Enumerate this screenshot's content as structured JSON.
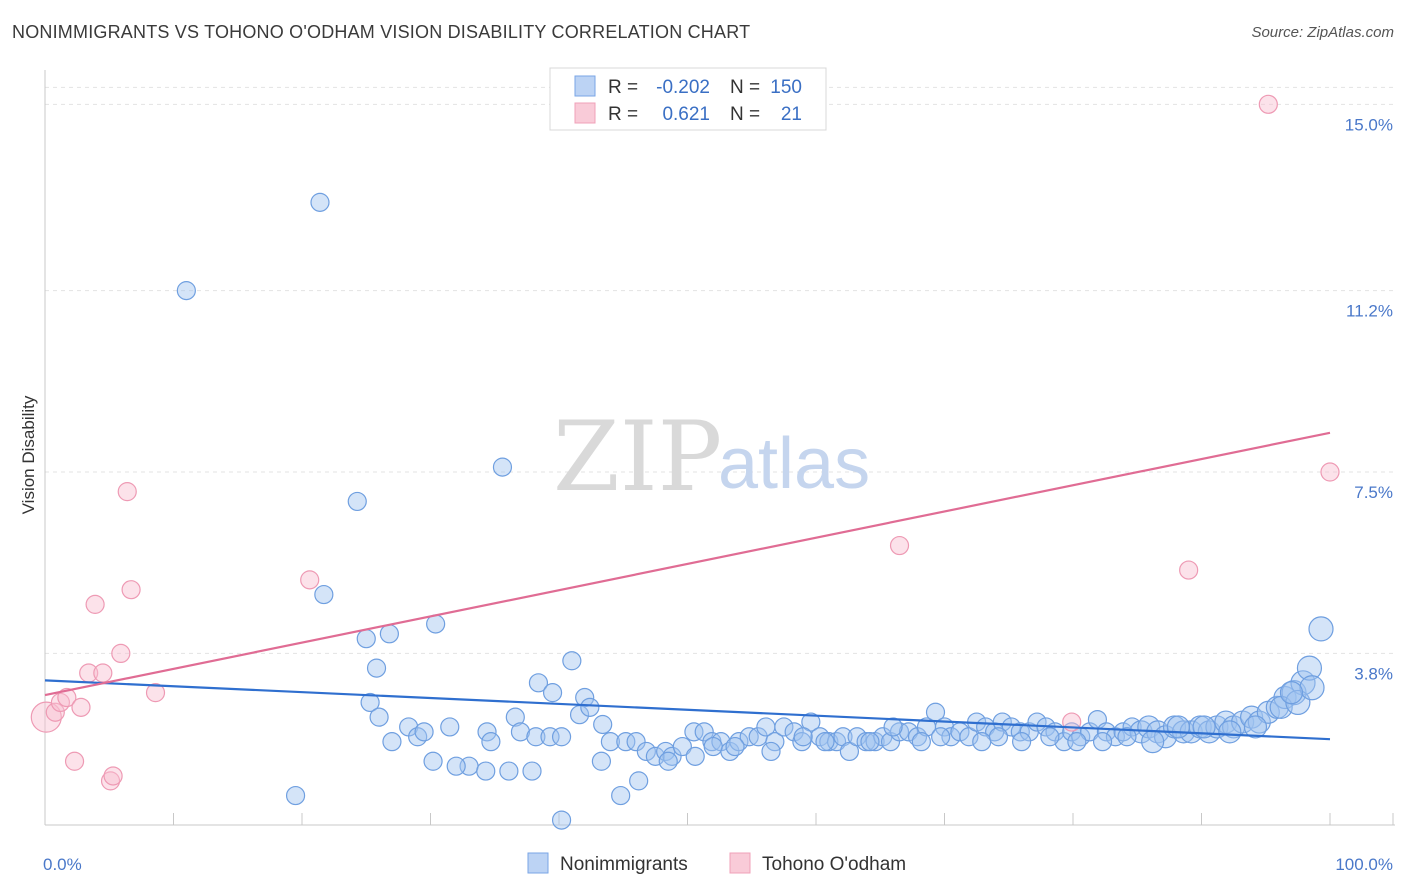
{
  "title": "NONIMMIGRANTS VS TOHONO O'ODHAM VISION DISABILITY CORRELATION CHART",
  "source": "Source: ZipAtlas.com",
  "watermark": {
    "zip": "ZIP",
    "atlas": "atlas"
  },
  "chart_data": {
    "type": "scatter",
    "xlabel": "",
    "ylabel": "Vision Disability",
    "xlim": [
      0,
      100
    ],
    "ylim": [
      0.3,
      15.7
    ],
    "x_tick_labels": [
      {
        "value": 0,
        "label": "0.0%"
      },
      {
        "value": 100,
        "label": "100.0%"
      }
    ],
    "y_tick_labels": [
      {
        "value": 3.8,
        "label": "3.8%"
      },
      {
        "value": 7.5,
        "label": "7.5%"
      },
      {
        "value": 11.2,
        "label": "11.2%"
      },
      {
        "value": 15.0,
        "label": "15.0%"
      }
    ],
    "grid": true,
    "legend_position": "top-center",
    "legend": [
      {
        "series": "Nonimmigrants",
        "r_label": "R =",
        "r_value": "-0.202",
        "n_label": "N =",
        "n_value": "150",
        "color": "#7aa6e6"
      },
      {
        "series": "Tohono O'odham",
        "r_label": "R =",
        "r_value": "0.621",
        "n_label": "N =",
        "n_value": "21",
        "color": "#f0a0b8"
      }
    ],
    "series": [
      {
        "name": "Nonimmigrants",
        "color": "#7aa6e6",
        "trend": {
          "x": [
            0,
            100
          ],
          "y": [
            3.25,
            2.05
          ],
          "color": "#2f6fcf"
        },
        "points": [
          [
            11,
            11.2
          ],
          [
            21.4,
            13.0
          ],
          [
            24.3,
            6.9
          ],
          [
            35.6,
            7.6
          ],
          [
            21.7,
            5.0
          ],
          [
            30.4,
            4.4
          ],
          [
            25,
            4.1
          ],
          [
            26.8,
            4.2
          ],
          [
            25.8,
            3.5
          ],
          [
            41,
            3.65
          ],
          [
            25.3,
            2.8
          ],
          [
            38.4,
            3.2
          ],
          [
            39.5,
            3.0
          ],
          [
            42,
            2.9
          ],
          [
            28.3,
            2.3
          ],
          [
            26,
            2.5
          ],
          [
            31.5,
            2.3
          ],
          [
            36.6,
            2.5
          ],
          [
            27,
            2.0
          ],
          [
            29,
            2.1
          ],
          [
            29.5,
            2.2
          ],
          [
            34.4,
            2.2
          ],
          [
            34.7,
            2.0
          ],
          [
            37,
            2.2
          ],
          [
            38.2,
            2.1
          ],
          [
            39.3,
            2.1
          ],
          [
            40.2,
            2.1
          ],
          [
            41.6,
            2.55
          ],
          [
            42.4,
            2.7
          ],
          [
            43.4,
            2.35
          ],
          [
            44,
            2.0
          ],
          [
            45.2,
            2.0
          ],
          [
            46,
            2.0
          ],
          [
            46.8,
            1.8
          ],
          [
            47.5,
            1.7
          ],
          [
            48.3,
            1.8
          ],
          [
            48.8,
            1.7
          ],
          [
            49.6,
            1.9
          ],
          [
            50.5,
            2.2
          ],
          [
            51.3,
            2.2
          ],
          [
            51.9,
            2.0
          ],
          [
            52.6,
            2.0
          ],
          [
            53.3,
            1.8
          ],
          [
            54,
            2.0
          ],
          [
            54.8,
            2.1
          ],
          [
            55.5,
            2.1
          ],
          [
            56.1,
            2.3
          ],
          [
            56.8,
            2.0
          ],
          [
            57.5,
            2.3
          ],
          [
            58.3,
            2.2
          ],
          [
            58.9,
            2.0
          ],
          [
            59.6,
            2.4
          ],
          [
            60.3,
            2.1
          ],
          [
            61,
            2.0
          ],
          [
            61.6,
            2.0
          ],
          [
            62.1,
            2.1
          ],
          [
            62.6,
            1.8
          ],
          [
            63.2,
            2.1
          ],
          [
            63.9,
            2.0
          ],
          [
            64.6,
            2.0
          ],
          [
            65.2,
            2.1
          ],
          [
            65.8,
            2.0
          ],
          [
            66.5,
            2.2
          ],
          [
            67.2,
            2.2
          ],
          [
            67.9,
            2.1
          ],
          [
            68.6,
            2.3
          ],
          [
            69.3,
            2.6
          ],
          [
            70,
            2.3
          ],
          [
            70.5,
            2.1
          ],
          [
            71.2,
            2.2
          ],
          [
            71.9,
            2.1
          ],
          [
            72.5,
            2.4
          ],
          [
            73.2,
            2.3
          ],
          [
            73.9,
            2.2
          ],
          [
            74.5,
            2.4
          ],
          [
            75.2,
            2.3
          ],
          [
            75.9,
            2.2
          ],
          [
            76.6,
            2.2
          ],
          [
            77.2,
            2.4
          ],
          [
            77.9,
            2.3
          ],
          [
            78.6,
            2.2
          ],
          [
            79.3,
            2.0
          ],
          [
            79.9,
            2.2
          ],
          [
            80.6,
            2.1
          ],
          [
            81.3,
            2.2
          ],
          [
            81.9,
            2.45
          ],
          [
            82.6,
            2.2
          ],
          [
            83.3,
            2.1
          ],
          [
            83.9,
            2.2
          ],
          [
            84.6,
            2.3
          ],
          [
            85.3,
            2.2
          ],
          [
            85.9,
            2.3
          ],
          [
            86.6,
            2.2
          ],
          [
            87.2,
            2.1
          ],
          [
            87.9,
            2.3
          ],
          [
            88.6,
            2.2
          ],
          [
            89.2,
            2.2
          ],
          [
            89.9,
            2.3
          ],
          [
            90.6,
            2.2
          ],
          [
            91.2,
            2.3
          ],
          [
            91.9,
            2.4
          ],
          [
            92.5,
            2.3
          ],
          [
            93.2,
            2.4
          ],
          [
            93.9,
            2.5
          ],
          [
            94.5,
            2.4
          ],
          [
            95.2,
            2.6
          ],
          [
            95.9,
            2.7
          ],
          [
            96.5,
            2.9
          ],
          [
            97.2,
            3.0
          ],
          [
            97.9,
            3.2
          ],
          [
            98.4,
            3.5
          ],
          [
            99.3,
            4.3
          ],
          [
            19.5,
            0.9
          ],
          [
            40.2,
            0.4
          ],
          [
            44.8,
            0.9
          ],
          [
            46.2,
            1.2
          ],
          [
            33,
            1.5
          ],
          [
            34.3,
            1.4
          ],
          [
            36.1,
            1.4
          ],
          [
            37.9,
            1.4
          ],
          [
            32,
            1.5
          ],
          [
            43.3,
            1.6
          ],
          [
            48.5,
            1.6
          ],
          [
            50.6,
            1.7
          ],
          [
            30.2,
            1.6
          ],
          [
            52,
            1.9
          ],
          [
            53.7,
            1.9
          ],
          [
            56.5,
            1.8
          ],
          [
            59,
            2.1
          ],
          [
            60.7,
            2.0
          ],
          [
            64.2,
            2.0
          ],
          [
            66,
            2.3
          ],
          [
            68.2,
            2.0
          ],
          [
            69.7,
            2.1
          ],
          [
            72.9,
            2.0
          ],
          [
            74.2,
            2.1
          ],
          [
            76,
            2.0
          ],
          [
            78.2,
            2.1
          ],
          [
            80.3,
            2.0
          ],
          [
            82.3,
            2.0
          ],
          [
            84.2,
            2.1
          ],
          [
            86.2,
            2.0
          ],
          [
            88.2,
            2.3
          ],
          [
            90.2,
            2.3
          ],
          [
            92.2,
            2.2
          ],
          [
            94.2,
            2.3
          ],
          [
            96.2,
            2.7
          ],
          [
            97.5,
            2.8
          ],
          [
            98.6,
            3.1
          ],
          [
            97,
            3.0
          ]
        ]
      },
      {
        "name": "Tohono O'odham",
        "color": "#f0a0b8",
        "trend": {
          "x": [
            0,
            100
          ],
          "y": [
            2.95,
            8.3
          ],
          "color": "#e06c94"
        },
        "points": [
          [
            0.1,
            2.5
          ],
          [
            0.8,
            2.6
          ],
          [
            1.2,
            2.8
          ],
          [
            1.7,
            2.9
          ],
          [
            2.3,
            1.6
          ],
          [
            2.8,
            2.7
          ],
          [
            3.4,
            3.4
          ],
          [
            3.9,
            4.8
          ],
          [
            4.5,
            3.4
          ],
          [
            5.1,
            1.2
          ],
          [
            5.3,
            1.3
          ],
          [
            5.9,
            3.8
          ],
          [
            6.4,
            7.1
          ],
          [
            6.7,
            5.1
          ],
          [
            8.6,
            3.0
          ],
          [
            20.6,
            5.3
          ],
          [
            66.5,
            6.0
          ],
          [
            79.9,
            2.4
          ],
          [
            89,
            5.5
          ],
          [
            95.2,
            15.0
          ],
          [
            100,
            7.5
          ]
        ]
      }
    ]
  },
  "bottom_legend": [
    {
      "label": "Nonimmigrants",
      "color": "#7aa6e6"
    },
    {
      "label": "Tohono O'odham",
      "color": "#f0a0b8"
    }
  ]
}
